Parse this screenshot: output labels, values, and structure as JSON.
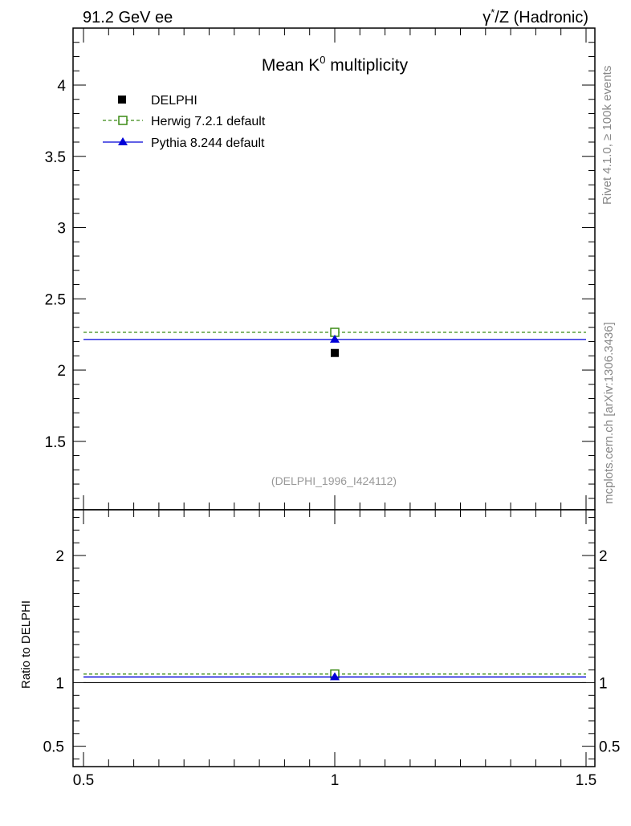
{
  "header": {
    "left": "91.2 GeV ee",
    "right_prefix": "γ",
    "right_sup": "*",
    "right_suffix": "/Z (Hadronic)"
  },
  "side_labels": {
    "top": "Rivet 4.1.0, ≥ 100k events",
    "bottom": "mcplots.cern.ch [arXiv:1306.3436]"
  },
  "colors": {
    "data": "#000000",
    "herwig": "#3a8a14",
    "pythia": "#0000d8",
    "watermark": "#999999"
  },
  "chart_data": [
    {
      "type": "line",
      "panel": "main",
      "title": "Mean K",
      "title_sup": "0",
      "title_suffix": " multiplicity",
      "xlabel": "",
      "ylabel": "",
      "xlim": [
        0.5,
        1.5
      ],
      "ylim": [
        1.02,
        4.4
      ],
      "yticks": [
        1.5,
        2,
        2.5,
        3,
        3.5,
        4
      ],
      "ytick_labels": [
        "1.5",
        "2",
        "2.5",
        "3",
        "3.5",
        "4"
      ],
      "annotation": "(DELPHI_1996_I424112)",
      "legend_position": "top-left",
      "series": [
        {
          "name": "DELPHI",
          "style": "data",
          "x": [
            1.0
          ],
          "y": [
            2.12
          ]
        },
        {
          "name": "Herwig 7.2.1 default",
          "style": "herwig",
          "x": [
            1.0
          ],
          "y": [
            2.265
          ],
          "xrange": [
            0.5,
            1.5
          ]
        },
        {
          "name": "Pythia 8.244 default",
          "style": "pythia",
          "x": [
            1.0
          ],
          "y": [
            2.215
          ],
          "xrange": [
            0.5,
            1.5
          ]
        }
      ]
    },
    {
      "type": "line",
      "panel": "ratio",
      "ylabel": "Ratio to DELPHI",
      "xlim": [
        0.5,
        1.5
      ],
      "ylim": [
        0.34,
        2.36
      ],
      "xticks": [
        0.5,
        1,
        1.5
      ],
      "xtick_labels": [
        "0.5",
        "1",
        "1.5"
      ],
      "yticks": [
        0.5,
        1,
        2
      ],
      "ytick_labels": [
        "0.5",
        "1",
        "2"
      ],
      "series": [
        {
          "name": "Herwig 7.2.1 default",
          "style": "herwig",
          "x": [
            1.0
          ],
          "y": [
            1.068
          ],
          "xrange": [
            0.5,
            1.5
          ]
        },
        {
          "name": "Pythia 8.244 default",
          "style": "pythia",
          "x": [
            1.0
          ],
          "y": [
            1.045
          ],
          "xrange": [
            0.5,
            1.5
          ]
        },
        {
          "name": "DELPHI",
          "style": "reference",
          "x": [
            1.0
          ],
          "y": [
            1.0
          ],
          "xrange": [
            0.5,
            1.5
          ]
        }
      ]
    }
  ]
}
